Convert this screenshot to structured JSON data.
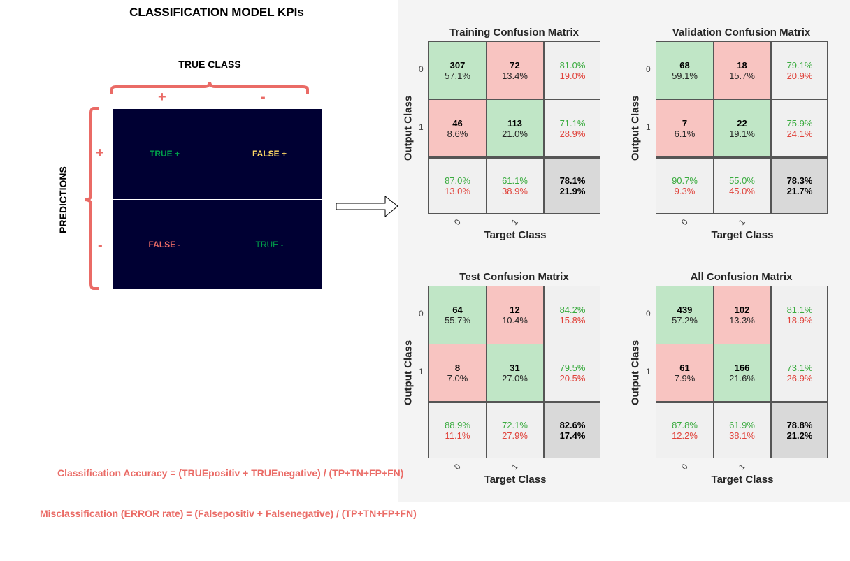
{
  "title": "CLASSIFICATION MODEL KPIs",
  "diagram": {
    "true_class_label": "TRUE CLASS",
    "predictions_label": "PREDICTIONS",
    "col_signs": [
      "+",
      "-"
    ],
    "row_signs": [
      "+",
      "-"
    ],
    "cells": [
      {
        "label": "TRUE +",
        "color": "#00a04a"
      },
      {
        "label": "FALSE +",
        "color": "#ffd966"
      },
      {
        "label": "FALSE -",
        "color": "#ea6b66"
      },
      {
        "label": "TRUE -",
        "color": "#00a04a"
      }
    ]
  },
  "colors": {
    "correct": "#c0e6c6",
    "incorrect": "#f8c4c1",
    "summary": "#f0f0f0",
    "overall": "#d9d9d9",
    "brace": "#ea6b66",
    "matrix_bg": "#000033"
  },
  "matrices": [
    {
      "title": "Training Confusion Matrix",
      "ylabel": "Output Class",
      "xlabel": "Target Class",
      "row_ticks": [
        "0",
        "1"
      ],
      "col_ticks": [
        "0",
        "1"
      ],
      "cells": [
        [
          "307",
          "57.1%"
        ],
        [
          "72",
          "13.4%"
        ],
        [
          "46",
          "8.6%"
        ],
        [
          "113",
          "21.0%"
        ]
      ],
      "row_summary": [
        [
          "81.0%",
          "19.0%"
        ],
        [
          "71.1%",
          "28.9%"
        ]
      ],
      "col_summary": [
        [
          "87.0%",
          "13.0%"
        ],
        [
          "61.1%",
          "38.9%"
        ]
      ],
      "overall": [
        "78.1%",
        "21.9%"
      ]
    },
    {
      "title": "Validation Confusion Matrix",
      "ylabel": "Output Class",
      "xlabel": "Target Class",
      "row_ticks": [
        "0",
        "1"
      ],
      "col_ticks": [
        "0",
        "1"
      ],
      "cells": [
        [
          "68",
          "59.1%"
        ],
        [
          "18",
          "15.7%"
        ],
        [
          "7",
          "6.1%"
        ],
        [
          "22",
          "19.1%"
        ]
      ],
      "row_summary": [
        [
          "79.1%",
          "20.9%"
        ],
        [
          "75.9%",
          "24.1%"
        ]
      ],
      "col_summary": [
        [
          "90.7%",
          "9.3%"
        ],
        [
          "55.0%",
          "45.0%"
        ]
      ],
      "overall": [
        "78.3%",
        "21.7%"
      ]
    },
    {
      "title": "Test Confusion Matrix",
      "ylabel": "Output Class",
      "xlabel": "Target Class",
      "row_ticks": [
        "0",
        "1"
      ],
      "col_ticks": [
        "0",
        "1"
      ],
      "cells": [
        [
          "64",
          "55.7%"
        ],
        [
          "12",
          "10.4%"
        ],
        [
          "8",
          "7.0%"
        ],
        [
          "31",
          "27.0%"
        ]
      ],
      "row_summary": [
        [
          "84.2%",
          "15.8%"
        ],
        [
          "79.5%",
          "20.5%"
        ]
      ],
      "col_summary": [
        [
          "88.9%",
          "11.1%"
        ],
        [
          "72.1%",
          "27.9%"
        ]
      ],
      "overall": [
        "82.6%",
        "17.4%"
      ]
    },
    {
      "title": "All Confusion Matrix",
      "ylabel": "Output Class",
      "xlabel": "Target Class",
      "row_ticks": [
        "0",
        "1"
      ],
      "col_ticks": [
        "0",
        "1"
      ],
      "cells": [
        [
          "439",
          "57.2%"
        ],
        [
          "102",
          "13.3%"
        ],
        [
          "61",
          "7.9%"
        ],
        [
          "166",
          "21.6%"
        ]
      ],
      "row_summary": [
        [
          "81.1%",
          "18.9%"
        ],
        [
          "73.1%",
          "26.9%"
        ]
      ],
      "col_summary": [
        [
          "87.8%",
          "12.2%"
        ],
        [
          "61.9%",
          "38.1%"
        ]
      ],
      "overall": [
        "78.8%",
        "21.2%"
      ]
    }
  ],
  "formulas": [
    "Classification Accuracy = (TRUEpositiv + TRUEnegative) / (TP+TN+FP+FN)",
    "Misclassification (ERROR rate) = (Falsepositiv + Falsenegative) / (TP+TN+FP+FN)"
  ]
}
